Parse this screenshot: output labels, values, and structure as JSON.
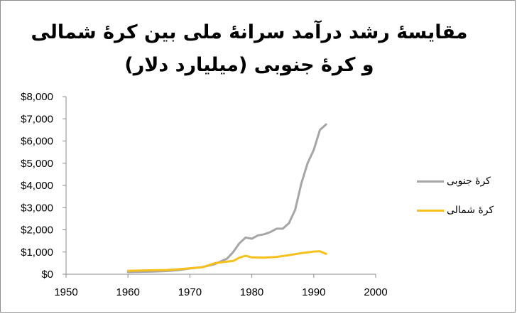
{
  "chart_data": {
    "type": "line",
    "title": "مقایسهٔ رشد درآمد سرانهٔ ملی بین کرهٔ شمالی و کرهٔ جنوبی (میلیارد دلار)",
    "xlabel": "",
    "ylabel": "",
    "xlim": [
      1950,
      2000
    ],
    "ylim": [
      0,
      8000
    ],
    "x_ticks": [
      "1950",
      "1960",
      "1970",
      "1980",
      "1990",
      "2000"
    ],
    "y_ticks": [
      "$0",
      "$1,000",
      "$2,000",
      "$3,000",
      "$4,000",
      "$5,000",
      "$6,000",
      "$7,000",
      "$8,000"
    ],
    "grid": false,
    "legend_position": "right",
    "series": [
      {
        "name": "کرهٔ جنوبی",
        "color": "#a6a6a6",
        "x": [
          1960,
          1962,
          1964,
          1966,
          1968,
          1970,
          1972,
          1974,
          1975,
          1976,
          1977,
          1978,
          1979,
          1980,
          1981,
          1982,
          1983,
          1984,
          1985,
          1986,
          1987,
          1988,
          1989,
          1990,
          1991,
          1992
        ],
        "y": [
          100,
          110,
          120,
          140,
          180,
          260,
          320,
          450,
          580,
          700,
          1000,
          1400,
          1650,
          1600,
          1750,
          1800,
          1900,
          2050,
          2050,
          2300,
          2900,
          4100,
          5000,
          5600,
          6500,
          6750
        ]
      },
      {
        "name": "کرهٔ شمالی",
        "color": "#f6c11c",
        "x": [
          1960,
          1962,
          1964,
          1966,
          1968,
          1970,
          1972,
          1974,
          1976,
          1977,
          1978,
          1979,
          1980,
          1982,
          1984,
          1986,
          1988,
          1990,
          1991,
          1992
        ],
        "y": [
          150,
          170,
          180,
          190,
          220,
          270,
          310,
          500,
          570,
          600,
          750,
          830,
          760,
          750,
          780,
          860,
          950,
          1020,
          1030,
          920
        ]
      }
    ]
  }
}
